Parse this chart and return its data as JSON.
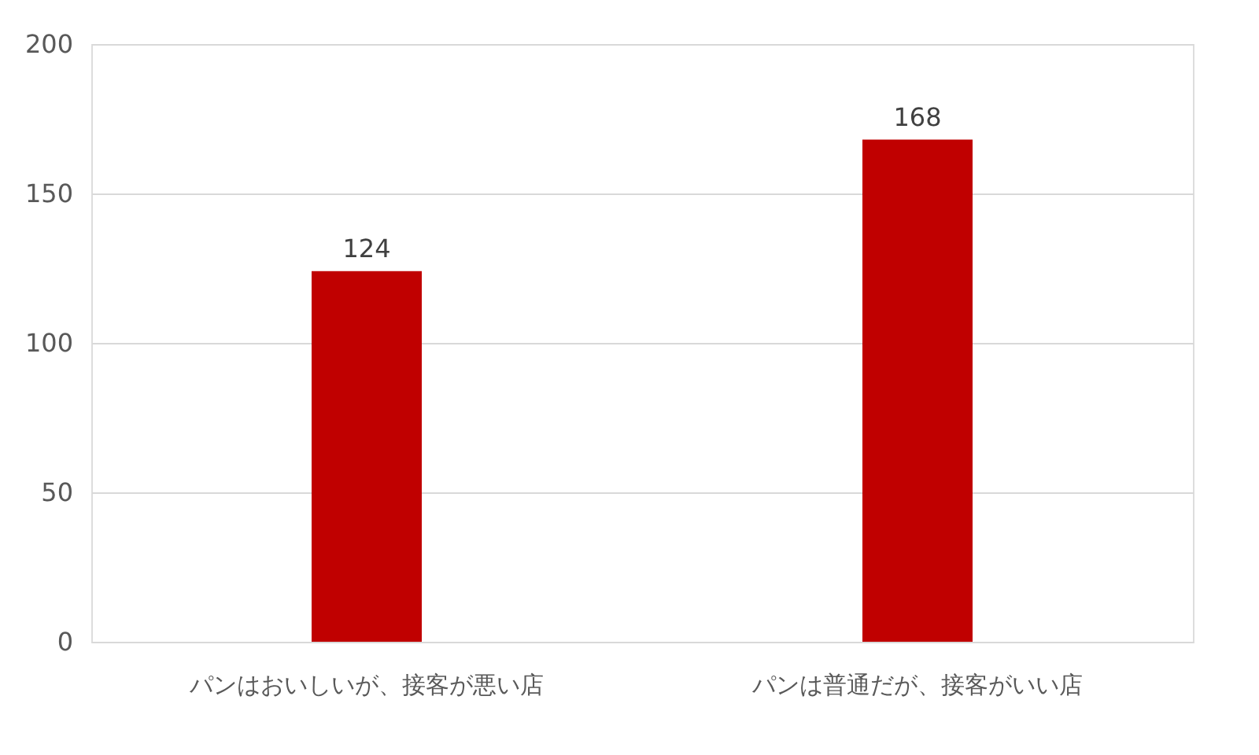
{
  "chart_data": {
    "type": "bar",
    "categories": [
      "パンはおいしいが、接客が悪い店",
      "パンは普通だが、接客がいい店"
    ],
    "values": [
      124,
      168
    ],
    "color": "#c00000",
    "ylim": [
      0,
      200
    ],
    "yticks": [
      0,
      50,
      100,
      150,
      200
    ],
    "grid": "y",
    "data_labels": true
  }
}
